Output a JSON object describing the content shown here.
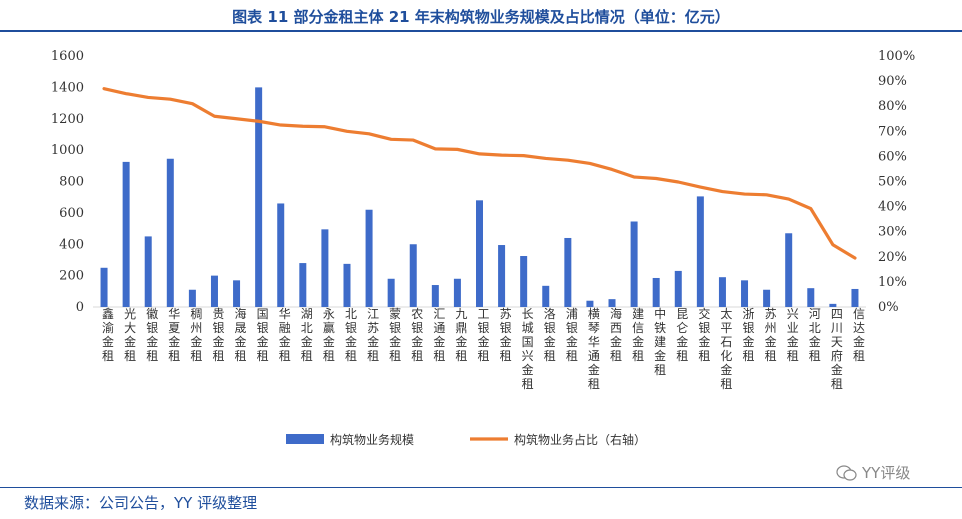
{
  "title": "图表 11 部分金租主体 21 年末构筑物业务规模及占比情况（单位：亿元）",
  "source": "数据来源：公司公告，YY 评级整理",
  "watermark": "YY评级",
  "colors": {
    "bar": "#3E6BC9",
    "line": "#ED7D31",
    "title": "#1F4E9C"
  },
  "chart_data": {
    "type": "bar",
    "categories": [
      "鑫渝金租",
      "光大金租",
      "徽银金租",
      "华夏金租",
      "稠州金租",
      "贵银金租",
      "海晟金租",
      "国银金租",
      "华融金租",
      "湖北金租",
      "永赢金租",
      "北银金租",
      "江苏金租",
      "蒙银金租",
      "农银金租",
      "汇通金租",
      "九鼎金租",
      "工银金租",
      "苏银金租",
      "长城国兴金租",
      "洛银金租",
      "浦银金租",
      "横琴华通金租",
      "海西金租",
      "建信金租",
      "中铁建金租",
      "昆仑金租",
      "交银金租",
      "太平石化金租",
      "浙银金租",
      "苏州金租",
      "兴业金租",
      "河北金租",
      "四川天府金租",
      "信达金租"
    ],
    "series": [
      {
        "name": "构筑物业务规模",
        "type": "bar",
        "axis": "left",
        "values": [
          250,
          925,
          450,
          945,
          110,
          200,
          170,
          1400,
          660,
          280,
          495,
          275,
          620,
          180,
          400,
          140,
          180,
          680,
          395,
          325,
          135,
          440,
          40,
          50,
          545,
          185,
          230,
          705,
          190,
          170,
          110,
          470,
          120,
          20,
          115
        ]
      },
      {
        "name": "构筑物业务占比（右轴）",
        "type": "line",
        "axis": "right",
        "values": [
          0.87,
          0.85,
          0.835,
          0.828,
          0.81,
          0.76,
          0.75,
          0.74,
          0.725,
          0.72,
          0.718,
          0.7,
          0.69,
          0.668,
          0.665,
          0.63,
          0.628,
          0.61,
          0.605,
          0.603,
          0.592,
          0.585,
          0.572,
          0.548,
          0.518,
          0.512,
          0.498,
          0.478,
          0.46,
          0.45,
          0.447,
          0.43,
          0.392,
          0.248,
          0.195
        ]
      }
    ],
    "y_left": {
      "ticks": [
        "0",
        "200",
        "400",
        "600",
        "800",
        "1000",
        "1200",
        "1400",
        "1600"
      ],
      "range": [
        0,
        1600
      ]
    },
    "y_right": {
      "ticks": [
        "0%",
        "10%",
        "20%",
        "30%",
        "40%",
        "50%",
        "60%",
        "70%",
        "80%",
        "90%",
        "100%"
      ],
      "range": [
        0,
        1
      ]
    },
    "legend_labels": [
      "构筑物业务规模",
      "构筑物业务占比（右轴）"
    ],
    "legend_position": "bottom",
    "grid": false
  }
}
